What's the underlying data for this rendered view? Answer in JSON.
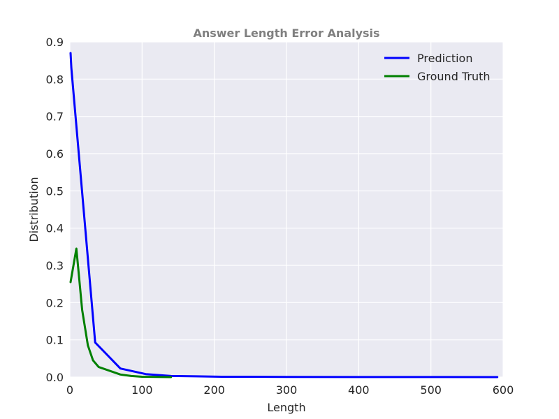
{
  "chart_data": {
    "type": "line",
    "title": "Answer Length Error Analysis",
    "xlabel": "Length",
    "ylabel": "Distribution",
    "xlim": [
      0,
      600
    ],
    "ylim": [
      0,
      0.9
    ],
    "xticks": [
      "0",
      "100",
      "200",
      "300",
      "400",
      "500",
      "600"
    ],
    "yticks": [
      "0.0",
      "0.1",
      "0.2",
      "0.3",
      "0.4",
      "0.5",
      "0.6",
      "0.7",
      "0.8",
      "0.9"
    ],
    "grid": true,
    "background_color": "#EAEAF2",
    "legend_position": "top-right",
    "series": [
      {
        "name": "Prediction",
        "color": "#0000FF",
        "x": [
          1,
          2,
          35,
          70,
          105,
          140,
          175,
          210,
          250,
          300,
          400,
          500,
          592
        ],
        "y": [
          0.87,
          0.83,
          0.093,
          0.023,
          0.008,
          0.003,
          0.002,
          0.001,
          0.001,
          0.0005,
          0.0002,
          0.0001,
          0.0
        ]
      },
      {
        "name": "Ground Truth",
        "color": "#008000",
        "x": [
          1,
          9,
          17,
          25,
          32,
          40,
          55,
          70,
          85,
          100,
          140
        ],
        "y": [
          0.255,
          0.345,
          0.18,
          0.085,
          0.045,
          0.027,
          0.017,
          0.007,
          0.003,
          0.001,
          0.0
        ]
      }
    ]
  }
}
